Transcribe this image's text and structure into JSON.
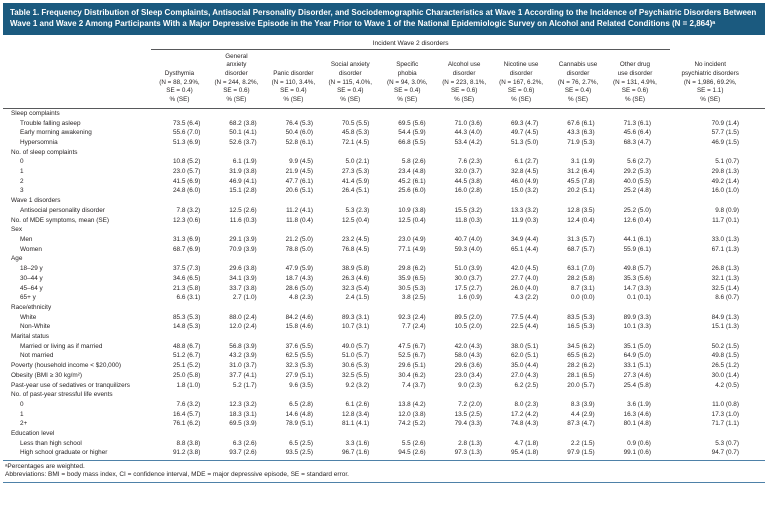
{
  "page": {
    "title": "Table 1. Frequency Distribution of Sleep Complaints, Antisocial Personality Disorder, and Sociodemographic Characteristics at Wave 1 According to the Incidence of Psychiatric Disorders Between Wave 1 and Wave 2 Among Participants With a Major Depressive Episode in the Year Prior to Wave 1 of the National Epidemiologic Survey on Alcohol and Related Conditions (N = 2,864)ᵃ"
  },
  "colors": {
    "title_bar_bg": "#1b5a7f",
    "title_text": "#ffffff",
    "body_text": "#231f20",
    "header_rule": "#58595b",
    "blue_rule": "#4e81a8"
  },
  "table": {
    "spanner": "Incident Wave 2 disorders",
    "columns": [
      {
        "text": "Dysthymia\n(N = 88, 2.9%,\nSE = 0.4)\n% (SE)"
      },
      {
        "text": "General\nanxiety\ndisorder\n(N = 244, 8.2%,\nSE = 0.6)\n% (SE)"
      },
      {
        "text": "Panic disorder\n(N = 110, 3.4%,\nSE = 0.4)\n% (SE)"
      },
      {
        "text": "Social anxiety\ndisorder\n(N = 115, 4.0%,\nSE = 0.4)\n% (SE)"
      },
      {
        "text": "Specific\nphobia\n(N = 94, 3.0%,\nSE = 0.4)\n% (SE)"
      },
      {
        "text": "Alcohol use\ndisorder\n(N = 223, 8.1%,\nSE = 0.6)\n% (SE)"
      },
      {
        "text": "Nicotine use\ndisorder\n(N = 167, 6.2%,\nSE = 0.6)\n% (SE)"
      },
      {
        "text": "Cannabis use\ndisorder\n(N = 76, 2.7%,\nSE = 0.4)\n% (SE)"
      },
      {
        "text": "Other drug\nuse disorder\n(N = 131, 4.9%,\nSE = 0.6)\n% (SE)"
      },
      {
        "text": "No incident\npsychiatric disorders\n(N = 1,986, 69.2%,\nSE = 1.1)\n% (SE)"
      }
    ],
    "rows": [
      {
        "label": "Sleep complaints",
        "indent": 0,
        "values": null
      },
      {
        "label": "Trouble falling asleep",
        "indent": 1,
        "values": [
          "73.5 (6.4)",
          "68.2 (3.8)",
          "76.4 (5.3)",
          "70.5 (5.5)",
          "69.5 (5.6)",
          "71.0 (3.6)",
          "69.3 (4.7)",
          "67.6 (6.1)",
          "71.3 (6.1)",
          "70.9 (1.4)"
        ]
      },
      {
        "label": "Early morning awakening",
        "indent": 1,
        "values": [
          "55.6 (7.0)",
          "50.1 (4.1)",
          "50.4 (6.0)",
          "45.8 (5.3)",
          "54.4 (5.9)",
          "44.3 (4.0)",
          "49.7 (4.5)",
          "43.3 (6.3)",
          "45.6 (6.4)",
          "57.7 (1.5)"
        ]
      },
      {
        "label": "Hypersomnia",
        "indent": 1,
        "values": [
          "51.3 (6.9)",
          "52.6 (3.7)",
          "52.8 (6.1)",
          "72.1 (4.5)",
          "66.8 (5.5)",
          "53.4 (4.2)",
          "51.3 (5.0)",
          "71.9 (5.3)",
          "68.3 (4.7)",
          "46.9 (1.5)"
        ]
      },
      {
        "label": "No. of sleep complaints",
        "indent": 0,
        "values": null
      },
      {
        "label": "0",
        "indent": 1,
        "values": [
          "10.8 (5.2)",
          "6.1 (1.9)",
          "9.9 (4.5)",
          "5.0 (2.1)",
          "5.8 (2.6)",
          "7.6 (2.3)",
          "6.1 (2.7)",
          "3.1 (1.9)",
          "5.6 (2.7)",
          "5.1 (0.7)"
        ]
      },
      {
        "label": "1",
        "indent": 1,
        "values": [
          "23.0 (5.7)",
          "31.9 (3.8)",
          "21.9 (4.5)",
          "27.3 (5.3)",
          "23.4 (4.8)",
          "32.0 (3.7)",
          "32.8 (4.5)",
          "31.2 (6.4)",
          "29.2 (5.3)",
          "29.8 (1.3)"
        ]
      },
      {
        "label": "2",
        "indent": 1,
        "values": [
          "41.5 (6.9)",
          "46.9 (4.1)",
          "47.7 (6.1)",
          "41.4 (5.9)",
          "45.2 (6.1)",
          "44.5 (3.8)",
          "46.0 (4.9)",
          "45.5 (7.8)",
          "40.0 (5.5)",
          "49.2 (1.4)"
        ]
      },
      {
        "label": "3",
        "indent": 1,
        "values": [
          "24.8 (6.0)",
          "15.1 (2.8)",
          "20.6 (5.1)",
          "26.4 (5.1)",
          "25.6 (6.0)",
          "16.0 (2.8)",
          "15.0 (3.2)",
          "20.2 (5.1)",
          "25.2 (4.8)",
          "16.0 (1.0)"
        ]
      },
      {
        "label": "Wave 1 disorders",
        "indent": 0,
        "values": null
      },
      {
        "label": "Antisocial personality disorder",
        "indent": 1,
        "values": [
          "7.8 (3.2)",
          "12.5 (2.6)",
          "11.2 (4.1)",
          "5.3 (2.3)",
          "10.9 (3.8)",
          "15.5 (3.2)",
          "13.3 (3.2)",
          "12.8 (3.5)",
          "25.2 (5.0)",
          "9.8 (0.9)"
        ]
      },
      {
        "label": "No. of MDE symptoms, mean (SE)",
        "indent": 0,
        "values": [
          "12.3 (0.6)",
          "11.6 (0.3)",
          "11.8 (0.4)",
          "12.5 (0.4)",
          "12.5 (0.4)",
          "11.8 (0.3)",
          "11.9 (0.3)",
          "12.4 (0.4)",
          "12.6 (0.4)",
          "11.7 (0.1)"
        ]
      },
      {
        "label": "Sex",
        "indent": 0,
        "values": null
      },
      {
        "label": "Men",
        "indent": 1,
        "values": [
          "31.3 (6.9)",
          "29.1 (3.9)",
          "21.2 (5.0)",
          "23.2 (4.5)",
          "23.0 (4.9)",
          "40.7 (4.0)",
          "34.9 (4.4)",
          "31.3 (5.7)",
          "44.1 (6.1)",
          "33.0 (1.3)"
        ]
      },
      {
        "label": "Women",
        "indent": 1,
        "values": [
          "68.7 (6.9)",
          "70.9 (3.9)",
          "78.8 (5.0)",
          "76.8 (4.5)",
          "77.1 (4.9)",
          "59.3 (4.0)",
          "65.1 (4.4)",
          "68.7 (5.7)",
          "55.9 (6.1)",
          "67.1 (1.3)"
        ]
      },
      {
        "label": "Age",
        "indent": 0,
        "values": null
      },
      {
        "label": "18–29 y",
        "indent": 1,
        "values": [
          "37.5 (7.3)",
          "29.6 (3.8)",
          "47.9 (5.9)",
          "38.9 (5.8)",
          "29.8 (6.2)",
          "51.0 (3.9)",
          "42.0 (4.5)",
          "63.1 (7.0)",
          "49.8 (5.7)",
          "26.8 (1.3)"
        ]
      },
      {
        "label": "30–44 y",
        "indent": 1,
        "values": [
          "34.6 (6.5)",
          "34.1 (3.9)",
          "18.7 (4.3)",
          "26.3 (4.6)",
          "35.9 (6.5)",
          "30.0 (3.7)",
          "27.7 (4.0)",
          "28.2 (5.8)",
          "35.3 (5.6)",
          "32.1 (1.3)"
        ]
      },
      {
        "label": "45–64 y",
        "indent": 1,
        "values": [
          "21.3 (5.8)",
          "33.7 (3.8)",
          "28.6 (5.0)",
          "32.3 (5.4)",
          "30.5 (5.3)",
          "17.5 (2.7)",
          "26.0 (4.0)",
          "8.7 (3.1)",
          "14.7 (3.3)",
          "32.5 (1.4)"
        ]
      },
      {
        "label": "65+ y",
        "indent": 1,
        "values": [
          "6.6 (3.1)",
          "2.7 (1.0)",
          "4.8 (2.3)",
          "2.4 (1.5)",
          "3.8 (2.5)",
          "1.6 (0.9)",
          "4.3 (2.2)",
          "0.0 (0.0)",
          "0.1 (0.1)",
          "8.6 (0.7)"
        ]
      },
      {
        "label": "Race/ethnicity",
        "indent": 0,
        "values": null
      },
      {
        "label": "White",
        "indent": 1,
        "values": [
          "85.3 (5.3)",
          "88.0 (2.4)",
          "84.2 (4.6)",
          "89.3 (3.1)",
          "92.3 (2.4)",
          "89.5 (2.0)",
          "77.5 (4.4)",
          "83.5 (5.3)",
          "89.9 (3.3)",
          "84.9 (1.3)"
        ]
      },
      {
        "label": "Non-White",
        "indent": 1,
        "values": [
          "14.8 (5.3)",
          "12.0 (2.4)",
          "15.8 (4.6)",
          "10.7 (3.1)",
          "7.7 (2.4)",
          "10.5 (2.0)",
          "22.5 (4.4)",
          "16.5 (5.3)",
          "10.1 (3.3)",
          "15.1 (1.3)"
        ]
      },
      {
        "label": "Marital status",
        "indent": 0,
        "values": null
      },
      {
        "label": "Married or living as if married",
        "indent": 1,
        "values": [
          "48.8 (6.7)",
          "56.8 (3.9)",
          "37.6 (5.5)",
          "49.0 (5.7)",
          "47.5 (6.7)",
          "42.0 (4.3)",
          "38.0 (5.1)",
          "34.5 (6.2)",
          "35.1 (5.0)",
          "50.2 (1.5)"
        ]
      },
      {
        "label": "Not married",
        "indent": 1,
        "values": [
          "51.2 (6.7)",
          "43.2 (3.9)",
          "62.5 (5.5)",
          "51.0 (5.7)",
          "52.5 (6.7)",
          "58.0 (4.3)",
          "62.0 (5.1)",
          "65.5 (6.2)",
          "64.9 (5.0)",
          "49.8 (1.5)"
        ]
      },
      {
        "label": "Poverty (household income < $20,000)",
        "indent": 0,
        "values": [
          "25.1 (5.2)",
          "31.0 (3.7)",
          "32.3 (5.3)",
          "30.6 (5.3)",
          "29.6 (5.1)",
          "29.6 (3.6)",
          "35.0 (4.4)",
          "28.2 (6.2)",
          "33.1 (5.1)",
          "26.5 (1.2)"
        ]
      },
      {
        "label": "Obesity (BMI ≥ 30 kg/m²)",
        "indent": 0,
        "values": [
          "25.0 (5.8)",
          "37.7 (4.1)",
          "27.9 (5.1)",
          "32.5 (5.5)",
          "30.4 (6.2)",
          "23.0 (3.4)",
          "27.0 (4.3)",
          "28.1 (6.5)",
          "27.3 (4.6)",
          "30.0 (1.4)"
        ]
      },
      {
        "label": "Past-year use of sedatives or tranquilizers",
        "indent": 0,
        "values": [
          "1.8 (1.0)",
          "5.2 (1.7)",
          "9.6 (3.5)",
          "9.2 (3.2)",
          "7.4 (3.7)",
          "9.0 (2.3)",
          "6.2 (2.5)",
          "20.0 (5.7)",
          "25.4 (5.8)",
          "4.2 (0.5)"
        ]
      },
      {
        "label": "No. of past-year stressful life events",
        "indent": 0,
        "values": null
      },
      {
        "label": "0",
        "indent": 1,
        "values": [
          "7.6 (3.2)",
          "12.3 (3.2)",
          "6.5 (2.8)",
          "6.1 (2.6)",
          "13.8 (4.2)",
          "7.2 (2.0)",
          "8.0 (2.3)",
          "8.3 (3.9)",
          "3.6 (1.9)",
          "11.0 (0.8)"
        ]
      },
      {
        "label": "1",
        "indent": 1,
        "values": [
          "16.4 (5.7)",
          "18.3 (3.1)",
          "14.6 (4.8)",
          "12.8 (3.4)",
          "12.0 (3.8)",
          "13.5 (2.5)",
          "17.2 (4.2)",
          "4.4 (2.9)",
          "16.3 (4.6)",
          "17.3 (1.0)"
        ]
      },
      {
        "label": "2+",
        "indent": 1,
        "values": [
          "76.1 (6.2)",
          "69.5 (3.9)",
          "78.9 (5.1)",
          "81.1 (4.1)",
          "74.2 (5.2)",
          "79.4 (3.3)",
          "74.8 (4.3)",
          "87.3 (4.7)",
          "80.1 (4.8)",
          "71.7 (1.1)"
        ]
      },
      {
        "label": "Education level",
        "indent": 0,
        "values": null
      },
      {
        "label": "Less than high school",
        "indent": 1,
        "values": [
          "8.8 (3.8)",
          "6.3 (2.6)",
          "6.5 (2.5)",
          "3.3 (1.6)",
          "5.5 (2.6)",
          "2.8 (1.3)",
          "4.7 (1.8)",
          "2.2 (1.5)",
          "0.9 (0.6)",
          "5.3 (0.7)"
        ]
      },
      {
        "label": "High school graduate or higher",
        "indent": 1,
        "values": [
          "91.2 (3.8)",
          "93.7 (2.6)",
          "93.5 (2.5)",
          "96.7 (1.6)",
          "94.5 (2.6)",
          "97.3 (1.3)",
          "95.4 (1.8)",
          "97.9 (1.5)",
          "99.1 (0.6)",
          "94.7 (0.7)"
        ]
      }
    ],
    "footnotes": [
      "ᵃPercentages are weighted.",
      "Abbreviations: BMI = body mass index, CI = confidence interval, MDE = major depressive episode, SE = standard error."
    ]
  }
}
